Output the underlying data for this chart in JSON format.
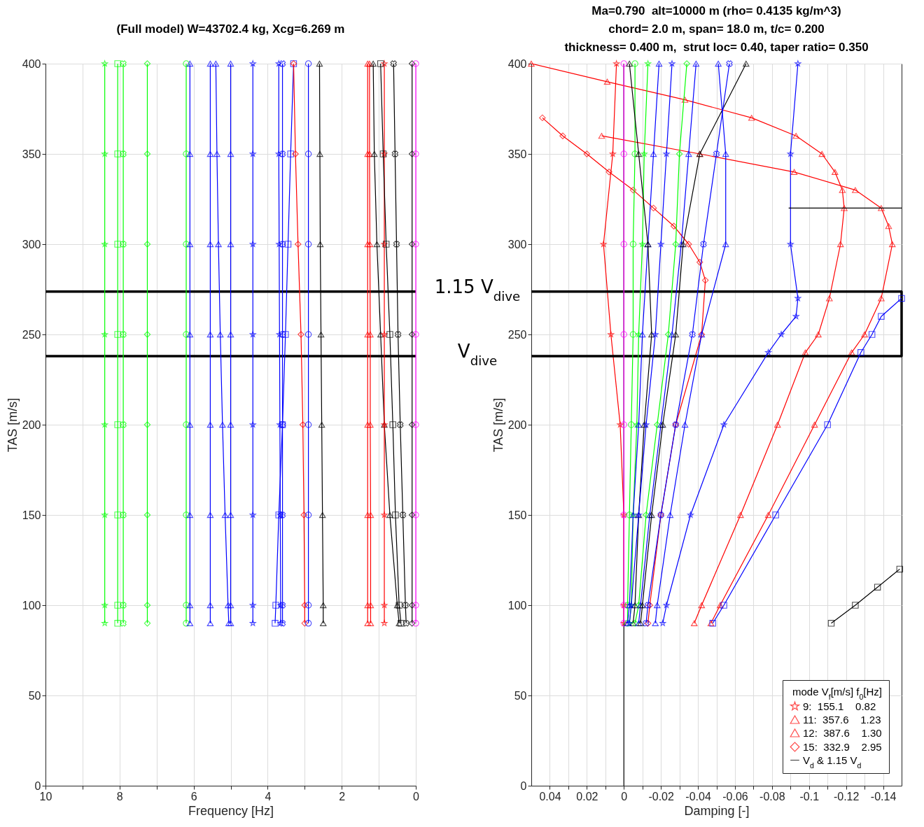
{
  "chart_data": [
    {
      "type": "line",
      "title": "(Full model) W=43702.4 kg, Xcg=6.269 m",
      "xlabel": "Frequency [Hz]",
      "ylabel": "TAS [m/s]",
      "xlim": [
        10,
        0
      ],
      "ylim": [
        0,
        400
      ],
      "xticks": [
        10,
        {
          "value": 9,
          "label": null
        },
        8,
        {
          "value": 7,
          "label": null
        },
        6,
        {
          "value": 5,
          "label": null
        },
        4,
        {
          "value": 3,
          "label": null
        },
        2,
        {
          "value": 1,
          "label": null
        },
        0
      ],
      "yticks": [
        0,
        50,
        100,
        150,
        200,
        250,
        300,
        350,
        400
      ],
      "grid": true,
      "ref_lines": [
        {
          "axis": "y",
          "value": 273.7,
          "label": "1.15 V$_{dive}$",
          "color": "#000000"
        },
        {
          "axis": "y",
          "value": 238,
          "label": "V$_{dive}$",
          "color": "#000000"
        }
      ],
      "series": [
        {
          "color": "#00ff00",
          "marker": "star",
          "x": [
            8.4,
            8.4,
            8.4,
            8.4,
            8.4,
            8.4,
            8.4,
            8.4
          ],
          "values": [
            90,
            100,
            150,
            200,
            250,
            300,
            350,
            400
          ]
        },
        {
          "color": "#00ff00",
          "marker": "square",
          "x": [
            8.05,
            8.05,
            8.05,
            8.05,
            8.05,
            8.05,
            8.05,
            8.05
          ],
          "values": [
            90,
            100,
            150,
            200,
            250,
            300,
            350,
            400
          ]
        },
        {
          "color": "#00ff00",
          "marker": "cross",
          "x": [
            7.9,
            7.9,
            7.9,
            7.9,
            7.9,
            7.9,
            7.9,
            7.9
          ],
          "values": [
            90,
            100,
            150,
            200,
            250,
            300,
            350,
            400
          ]
        },
        {
          "color": "#00ff00",
          "marker": "diamond",
          "x": [
            7.25,
            7.25,
            7.25,
            7.25,
            7.25,
            7.25,
            7.25,
            7.25
          ],
          "values": [
            90,
            100,
            150,
            200,
            250,
            300,
            350,
            400
          ]
        },
        {
          "color": "#00ff00",
          "marker": "circle",
          "x": [
            6.2,
            6.2,
            6.2,
            6.2,
            6.2,
            6.2,
            6.2,
            6.2
          ],
          "values": [
            90,
            100,
            150,
            200,
            250,
            300,
            350,
            400
          ]
        },
        {
          "color": "#0000ff",
          "marker": "triangle",
          "x": [
            6.1,
            6.1,
            6.1,
            6.1,
            6.1,
            6.1,
            6.1,
            6.1
          ],
          "values": [
            90,
            100,
            150,
            200,
            250,
            300,
            350,
            400
          ]
        },
        {
          "color": "#0000ff",
          "marker": "triangle",
          "x": [
            5.55,
            5.55,
            5.55,
            5.55,
            5.55,
            5.55,
            5.55,
            5.55
          ],
          "values": [
            90,
            100,
            150,
            200,
            250,
            300,
            350,
            400
          ]
        },
        {
          "color": "#0000ff",
          "marker": "triangle",
          "x": [
            5.05,
            5.07,
            5.15,
            5.22,
            5.28,
            5.33,
            5.37,
            5.4
          ],
          "values": [
            90,
            100,
            150,
            200,
            250,
            300,
            350,
            400
          ]
        },
        {
          "color": "#0000ff",
          "marker": "triangle",
          "x": [
            5.0,
            5.0,
            5.0,
            5.0,
            5.0,
            5.0,
            5.0,
            5.0
          ],
          "values": [
            90,
            100,
            150,
            200,
            250,
            300,
            350,
            400
          ]
        },
        {
          "color": "#0000ff",
          "marker": "star",
          "x": [
            4.4,
            4.4,
            4.4,
            4.4,
            4.4,
            4.4,
            4.4,
            4.4
          ],
          "values": [
            90,
            100,
            150,
            200,
            250,
            300,
            350,
            400
          ]
        },
        {
          "color": "#0000ff",
          "marker": "star",
          "x": [
            3.65,
            3.65,
            3.66,
            3.67,
            3.68,
            3.69,
            3.7,
            3.7
          ],
          "values": [
            90,
            100,
            150,
            200,
            250,
            300,
            350,
            400
          ]
        },
        {
          "color": "#0000ff",
          "marker": "cross",
          "x": [
            3.6,
            3.6,
            3.6,
            3.6,
            3.6,
            3.6,
            3.6,
            3.6
          ],
          "values": [
            90,
            100,
            150,
            200,
            250,
            300,
            350,
            400
          ]
        },
        {
          "color": "#0000ff",
          "marker": "square",
          "x": [
            3.8,
            3.78,
            3.7,
            3.6,
            3.52,
            3.45,
            3.38,
            3.3
          ],
          "values": [
            90,
            100,
            150,
            200,
            250,
            300,
            350,
            400
          ]
        },
        {
          "color": "#ff0000",
          "marker": "diamond",
          "x": [
            3.0,
            3.0,
            3.02,
            3.05,
            3.1,
            3.18,
            3.25,
            3.3
          ],
          "values": [
            90,
            100,
            150,
            200,
            250,
            300,
            350,
            400
          ]
        },
        {
          "color": "#0000ff",
          "marker": "circle",
          "x": [
            2.9,
            2.9,
            2.9,
            2.9,
            2.9,
            2.9,
            2.9,
            2.9
          ],
          "values": [
            90,
            100,
            150,
            200,
            250,
            300,
            350,
            400
          ]
        },
        {
          "color": "#000000",
          "marker": "triangle",
          "x": [
            2.5,
            2.5,
            2.52,
            2.54,
            2.56,
            2.58,
            2.59,
            2.6
          ],
          "values": [
            90,
            100,
            150,
            200,
            250,
            300,
            350,
            400
          ]
        },
        {
          "color": "#ff0000",
          "marker": "triangle",
          "x": [
            1.3,
            1.3,
            1.3,
            1.3,
            1.3,
            1.3,
            1.3,
            1.3
          ],
          "values": [
            90,
            100,
            150,
            200,
            250,
            300,
            350,
            400
          ]
        },
        {
          "color": "#ff0000",
          "marker": "triangle",
          "x": [
            1.22,
            1.22,
            1.22,
            1.23,
            1.23,
            1.24,
            1.25,
            1.25
          ],
          "values": [
            90,
            100,
            150,
            200,
            250,
            300,
            350,
            400
          ]
        },
        {
          "color": "#000000",
          "marker": "triangle",
          "x": [
            0.45,
            0.5,
            0.7,
            0.85,
            0.95,
            1.05,
            1.12,
            1.15
          ],
          "values": [
            90,
            100,
            150,
            200,
            250,
            300,
            350,
            400
          ]
        },
        {
          "color": "#ff0000",
          "marker": "star",
          "x": [
            0.85,
            0.85,
            0.85,
            0.85,
            0.85,
            0.85,
            0.85,
            0.85
          ],
          "values": [
            90,
            100,
            150,
            200,
            250,
            300,
            350,
            400
          ]
        },
        {
          "color": "#000000",
          "marker": "square",
          "x": [
            0.4,
            0.45,
            0.55,
            0.62,
            0.7,
            0.8,
            0.88,
            0.95
          ],
          "values": [
            90,
            100,
            150,
            200,
            250,
            300,
            350,
            400
          ]
        },
        {
          "color": "#000000",
          "marker": "cross",
          "x": [
            0.26,
            0.28,
            0.35,
            0.42,
            0.48,
            0.52,
            0.56,
            0.6
          ],
          "values": [
            90,
            100,
            150,
            200,
            250,
            300,
            350,
            400
          ]
        },
        {
          "color": "#000000",
          "marker": "diamond",
          "x": [
            0.1,
            0.1,
            0.1,
            0.1,
            0.1,
            0.1,
            0.1,
            0.1
          ],
          "values": [
            90,
            100,
            150,
            200,
            250,
            300,
            350,
            400
          ]
        },
        {
          "color": "#ff00ff",
          "marker": "circle",
          "x": [
            0,
            0,
            0,
            0,
            0,
            0,
            0,
            0
          ],
          "values": [
            90,
            100,
            150,
            200,
            250,
            300,
            350,
            400
          ]
        }
      ]
    },
    {
      "type": "line",
      "title": "Ma=0.790  alt=10000 m (rho= 0.4135 kg/m^3)\nchord= 2.0 m, span= 18.0 m, t/c= 0.200\nthickness= 0.400 m,  strut loc= 0.40, taper ratio= 0.350",
      "xlabel": "Damping [-]",
      "ylabel": "TAS [m/s]",
      "xlim": [
        0.05,
        -0.15
      ],
      "ylim": [
        0,
        400
      ],
      "xticks": [
        0.04,
        {
          "value": 0.03,
          "label": null
        },
        0.02,
        {
          "value": 0.01,
          "label": null
        },
        0,
        {
          "value": -0.01,
          "label": null
        },
        -0.02,
        {
          "value": -0.03,
          "label": null
        },
        -0.04,
        {
          "value": -0.05,
          "label": null
        },
        -0.06,
        {
          "value": -0.07,
          "label": null
        },
        -0.08,
        {
          "value": -0.09,
          "label": null
        },
        -0.1,
        {
          "value": -0.11,
          "label": null
        },
        -0.12,
        {
          "value": -0.13,
          "label": null
        },
        -0.14
      ],
      "yticks": [
        0,
        50,
        100,
        150,
        200,
        250,
        300,
        350,
        400
      ],
      "grid": true,
      "legend": "bottom right",
      "legend_title": "mode V$_{f}$[m/s] f$_{0}$[Hz]",
      "ref_lines": [
        {
          "axis": "x",
          "value": 0,
          "color": "#000000"
        }
      ],
      "series": [
        {
          "name": "9:  155.1    0.82",
          "color": "#ff0000",
          "marker": "star",
          "x": [
            0,
            0,
            0,
            0.002,
            0.007,
            0.011,
            0.006,
            0.004
          ],
          "values": [
            90,
            100,
            150,
            200,
            250,
            300,
            350,
            400
          ]
        },
        {
          "name": "11:  357.6    1.23",
          "color": "#ff0000",
          "marker": "triangle",
          "x": [
            -0.047,
            -0.052,
            -0.078,
            -0.103,
            -0.123,
            -0.13,
            -0.139,
            -0.145,
            -0.143,
            -0.139,
            -0.125,
            -0.092,
            -0.041,
            0.012
          ],
          "values": [
            90,
            100,
            150,
            200,
            240,
            250,
            270,
            300,
            310,
            320,
            330,
            340,
            350,
            360
          ]
        },
        {
          "name": "12:  387.6    1.30",
          "color": "#ff0000",
          "marker": "triangle",
          "x": [
            -0.038,
            -0.042,
            -0.063,
            -0.083,
            -0.098,
            -0.105,
            -0.111,
            -0.117,
            -0.119,
            -0.118,
            -0.114,
            -0.107,
            -0.093,
            -0.069,
            -0.033,
            0.009,
            0.05
          ],
          "values": [
            90,
            100,
            150,
            200,
            240,
            250,
            270,
            300,
            320,
            330,
            340,
            350,
            360,
            370,
            380,
            390,
            400
          ]
        },
        {
          "name": "15:  332.9    2.95",
          "color": "#ff0000",
          "marker": "diamond",
          "x": [
            -0.013,
            -0.014,
            -0.02,
            -0.028,
            -0.042,
            -0.044,
            -0.041,
            -0.035,
            -0.027,
            -0.016,
            -0.005,
            0.008,
            0.02,
            0.033,
            0.044
          ],
          "values": [
            90,
            100,
            150,
            200,
            250,
            280,
            290,
            300,
            310,
            320,
            330,
            340,
            350,
            360,
            370
          ]
        },
        {
          "name": "V$_{d}$ & 1.15 V$_{d}$",
          "color": "#000000",
          "marker": "none",
          "x": [
            0.05,
            -0.15,
            -0.15,
            0.05
          ],
          "values": [
            238,
            238,
            273.7,
            273.7
          ]
        },
        {
          "color": "#ff00ff",
          "marker": "circle",
          "x": [
            0,
            0,
            0,
            0,
            0,
            0,
            0,
            0
          ],
          "values": [
            90,
            100,
            150,
            200,
            250,
            300,
            350,
            400
          ]
        },
        {
          "color": "#00ff00",
          "marker": "circle",
          "x": [
            -0.002,
            -0.002,
            -0.003,
            -0.004,
            -0.005,
            -0.005,
            -0.006,
            -0.006
          ],
          "values": [
            90,
            100,
            150,
            200,
            250,
            300,
            350,
            400
          ]
        },
        {
          "color": "#00ff00",
          "marker": "star",
          "x": [
            -0.003,
            -0.004,
            -0.005,
            -0.007,
            -0.008,
            -0.01,
            -0.011,
            -0.013
          ],
          "values": [
            90,
            100,
            150,
            200,
            250,
            300,
            350,
            400
          ]
        },
        {
          "color": "#0000ff",
          "marker": "triangle",
          "x": [
            -0.002,
            -0.003,
            -0.005,
            -0.008,
            -0.01,
            -0.013,
            -0.016,
            -0.019
          ],
          "values": [
            90,
            100,
            150,
            200,
            250,
            300,
            350,
            400
          ]
        },
        {
          "color": "#000000",
          "marker": "triangle",
          "x": [
            -0.005,
            -0.006,
            -0.008,
            -0.011,
            -0.015,
            -0.013,
            -0.008,
            -0.003
          ],
          "values": [
            90,
            100,
            150,
            200,
            250,
            300,
            350,
            400
          ]
        },
        {
          "color": "#0000ff",
          "marker": "star",
          "x": [
            -0.003,
            -0.004,
            -0.008,
            -0.012,
            -0.017,
            -0.02,
            -0.023,
            -0.026
          ],
          "values": [
            90,
            100,
            150,
            200,
            250,
            300,
            350,
            400
          ]
        },
        {
          "color": "#00ff00",
          "marker": "diamond",
          "x": [
            -0.006,
            -0.008,
            -0.012,
            -0.018,
            -0.024,
            -0.028,
            -0.03,
            -0.034
          ],
          "values": [
            90,
            100,
            150,
            200,
            250,
            300,
            350,
            400
          ]
        },
        {
          "color": "#0000ff",
          "marker": "triangle",
          "x": [
            -0.008,
            -0.009,
            -0.014,
            -0.02,
            -0.026,
            -0.031,
            -0.035,
            -0.039
          ],
          "values": [
            90,
            100,
            150,
            200,
            250,
            300,
            350,
            400
          ]
        },
        {
          "color": "#000000",
          "marker": "triangle",
          "x": [
            -0.009,
            -0.01,
            -0.015,
            -0.021,
            -0.028,
            -0.032,
            -0.041,
            -0.066
          ],
          "values": [
            90,
            100,
            150,
            200,
            250,
            300,
            350,
            400
          ]
        },
        {
          "color": "#0000ff",
          "marker": "cross",
          "x": [
            -0.012,
            -0.013,
            -0.02,
            -0.028,
            -0.037,
            -0.043,
            -0.05,
            -0.057
          ],
          "values": [
            90,
            100,
            150,
            200,
            250,
            300,
            350,
            400
          ]
        },
        {
          "color": "#0000ff",
          "marker": "triangle",
          "x": [
            -0.017,
            -0.018,
            -0.025,
            -0.033,
            -0.042,
            -0.055,
            -0.055,
            -0.051
          ],
          "values": [
            90,
            100,
            150,
            200,
            250,
            300,
            350,
            400
          ]
        },
        {
          "color": "#0000ff",
          "marker": "star",
          "x": [
            -0.021,
            -0.023,
            -0.036,
            -0.054,
            -0.078,
            -0.085,
            -0.093,
            -0.094,
            -0.09,
            -0.09,
            -0.094
          ],
          "values": [
            90,
            100,
            150,
            200,
            240,
            250,
            260,
            270,
            300,
            350,
            400
          ]
        },
        {
          "color": "#0000ff",
          "marker": "square",
          "x": [
            -0.048,
            -0.054,
            -0.082,
            -0.11,
            -0.128,
            -0.134,
            -0.139,
            -0.15
          ],
          "values": [
            90,
            100,
            150,
            200,
            240,
            250,
            260,
            270
          ]
        },
        {
          "color": "#000000",
          "marker": "square",
          "x": [
            -0.112,
            -0.125,
            -0.137,
            -0.149
          ],
          "values": [
            90,
            100,
            110,
            120
          ]
        },
        {
          "color": "#000000",
          "marker": "none",
          "x": [
            -0.089,
            -0.15
          ],
          "values": [
            320,
            320
          ]
        }
      ]
    }
  ]
}
